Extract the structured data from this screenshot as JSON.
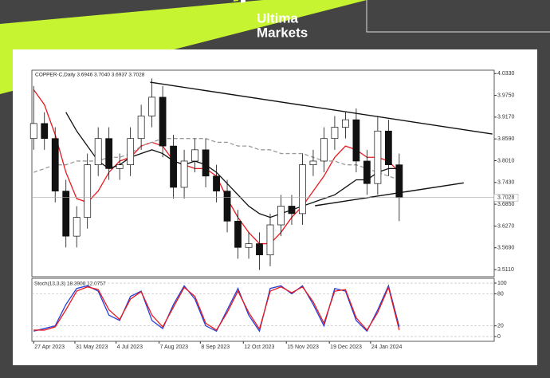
{
  "brand": {
    "line1": "Ultima",
    "line2": "Markets"
  },
  "chart_data": [
    {
      "type": "candlestick",
      "title": "COPPER-C,Daily  3.6946 3.7040 3.6937 3.7028",
      "x": [
        0,
        6,
        12,
        18,
        24,
        30,
        36,
        42,
        48,
        54,
        60,
        66,
        72,
        78,
        84,
        90,
        96,
        102,
        108,
        114,
        120,
        126,
        132,
        138,
        144,
        150,
        156,
        162,
        168,
        174,
        180,
        186,
        192,
        198,
        204
      ],
      "open": [
        3.86,
        3.9,
        3.86,
        3.72,
        3.6,
        3.65,
        3.79,
        3.86,
        3.78,
        3.79,
        3.86,
        3.92,
        3.97,
        3.84,
        3.73,
        3.8,
        3.83,
        3.76,
        3.72,
        3.64,
        3.57,
        3.58,
        3.55,
        3.63,
        3.68,
        3.66,
        3.79,
        3.8,
        3.86,
        3.89,
        3.91,
        3.8,
        3.74,
        3.88,
        3.79
      ],
      "high": [
        4.0,
        3.93,
        3.89,
        3.75,
        3.68,
        3.82,
        3.89,
        3.89,
        3.82,
        3.89,
        3.95,
        4.02,
        4.0,
        3.87,
        3.83,
        3.86,
        3.86,
        3.79,
        3.75,
        3.67,
        3.61,
        3.61,
        3.66,
        3.71,
        3.71,
        3.82,
        3.83,
        3.89,
        3.92,
        3.93,
        3.94,
        3.83,
        3.92,
        3.91,
        3.82
      ],
      "low": [
        3.83,
        3.83,
        3.69,
        3.57,
        3.57,
        3.62,
        3.76,
        3.75,
        3.75,
        3.76,
        3.83,
        3.89,
        3.81,
        3.7,
        3.7,
        3.77,
        3.73,
        3.69,
        3.61,
        3.54,
        3.54,
        3.51,
        3.52,
        3.6,
        3.63,
        3.63,
        3.76,
        3.77,
        3.83,
        3.86,
        3.77,
        3.71,
        3.71,
        3.76,
        3.64
      ],
      "close": [
        3.9,
        3.86,
        3.72,
        3.6,
        3.65,
        3.79,
        3.86,
        3.78,
        3.79,
        3.86,
        3.92,
        3.97,
        3.84,
        3.73,
        3.8,
        3.83,
        3.76,
        3.72,
        3.64,
        3.57,
        3.58,
        3.55,
        3.63,
        3.68,
        3.66,
        3.79,
        3.8,
        3.86,
        3.89,
        3.91,
        3.8,
        3.74,
        3.88,
        3.79,
        3.7028
      ],
      "series": [
        {
          "color": "#e8191f",
          "dash": false,
          "values": [
            3.99,
            3.95,
            3.87,
            3.77,
            3.7,
            3.69,
            3.72,
            3.77,
            3.8,
            3.81,
            3.84,
            3.85,
            3.84,
            3.8,
            3.79,
            3.78,
            3.78,
            3.76,
            3.7,
            3.65,
            3.61,
            3.58,
            3.58,
            3.61,
            3.65,
            3.68,
            3.72,
            3.76,
            3.81,
            3.84,
            3.83,
            3.81,
            3.81,
            3.8,
            3.77
          ]
        },
        {
          "color": "#111111",
          "dash": false,
          "values": [
            null,
            null,
            null,
            3.93,
            3.88,
            3.84,
            3.8,
            3.78,
            3.79,
            3.81,
            3.82,
            3.83,
            3.82,
            3.8,
            3.79,
            3.8,
            3.79,
            3.77,
            3.74,
            3.71,
            3.68,
            3.66,
            3.65,
            3.66,
            3.67,
            3.68,
            3.69,
            3.7,
            3.71,
            3.73,
            3.75,
            3.75,
            3.77,
            3.78,
            3.78
          ]
        },
        {
          "color": "#999999",
          "dash": true,
          "values": [
            3.77,
            3.78,
            3.79,
            3.79,
            3.8,
            3.8,
            3.8,
            3.81,
            3.81,
            3.82,
            3.84,
            3.85,
            3.86,
            3.86,
            3.86,
            3.86,
            3.86,
            3.85,
            3.85,
            3.84,
            3.84,
            3.83,
            3.83,
            3.82,
            3.82,
            3.82,
            3.81,
            3.8,
            3.8,
            3.79,
            3.79,
            3.78,
            3.77,
            3.76,
            3.75
          ]
        }
      ],
      "trendlines": [
        {
          "x": [
            65,
            256
          ],
          "y": [
            4.01,
            3.872
          ]
        },
        {
          "x": [
            157,
            240
          ],
          "y": [
            3.681,
            3.742
          ]
        }
      ],
      "last_price": 3.7028,
      "xlim": [
        -1,
        257
      ],
      "ylim": [
        3.492,
        4.042
      ],
      "xticks": [
        {
          "value": 0,
          "label": "27 Apr 2023"
        },
        {
          "value": 23,
          "label": "31 May 2023"
        },
        {
          "value": 46,
          "label": "4 Jul 2023"
        },
        {
          "value": 70,
          "label": "7 Aug 2023"
        },
        {
          "value": 93,
          "label": "8 Sep 2023"
        },
        {
          "value": 117,
          "label": "12 Oct 2023"
        },
        {
          "value": 141,
          "label": "15 Nov 2023"
        },
        {
          "value": 165,
          "label": "19 Dec 2023"
        },
        {
          "value": 188,
          "label": "24 Jan 2024"
        }
      ],
      "yticks": [
        {
          "value": 4.033,
          "label": "4.0330"
        },
        {
          "value": 3.975,
          "label": "3.9750"
        },
        {
          "value": 3.917,
          "label": "3.9170"
        },
        {
          "value": 3.859,
          "label": "3.8590"
        },
        {
          "value": 3.801,
          "label": "3.8010"
        },
        {
          "value": 3.743,
          "label": "3.7430"
        },
        {
          "value": 3.685,
          "label": "3.6850"
        },
        {
          "value": 3.627,
          "label": "3.6270"
        },
        {
          "value": 3.569,
          "label": "3.5690"
        },
        {
          "value": 3.511,
          "label": "3.5110"
        }
      ]
    },
    {
      "type": "line",
      "title": "Stoch(13,3,3) 18.3908 12.0757",
      "x": [
        0,
        6,
        12,
        18,
        24,
        30,
        36,
        42,
        48,
        54,
        60,
        66,
        72,
        78,
        84,
        90,
        96,
        102,
        108,
        114,
        120,
        126,
        132,
        138,
        144,
        150,
        156,
        162,
        168,
        174,
        180,
        186,
        192,
        198,
        204
      ],
      "series": [
        {
          "color": "#2a3fd6",
          "values": [
            10,
            15,
            20,
            60,
            90,
            95,
            85,
            40,
            30,
            75,
            85,
            30,
            15,
            60,
            95,
            70,
            20,
            10,
            50,
            90,
            40,
            10,
            90,
            95,
            80,
            95,
            60,
            20,
            90,
            85,
            30,
            10,
            50,
            95,
            18.3908
          ]
        },
        {
          "color": "#e8191f",
          "values": [
            12,
            12,
            18,
            50,
            85,
            93,
            88,
            50,
            32,
            70,
            84,
            40,
            18,
            55,
            92,
            75,
            25,
            12,
            45,
            85,
            45,
            14,
            85,
            93,
            82,
            93,
            65,
            25,
            85,
            88,
            35,
            12,
            45,
            92,
            12.0757
          ]
        }
      ],
      "xlim": [
        -1,
        257
      ],
      "ylim": [
        -9,
        109
      ],
      "yticks": [
        100,
        80,
        20,
        0
      ]
    }
  ]
}
